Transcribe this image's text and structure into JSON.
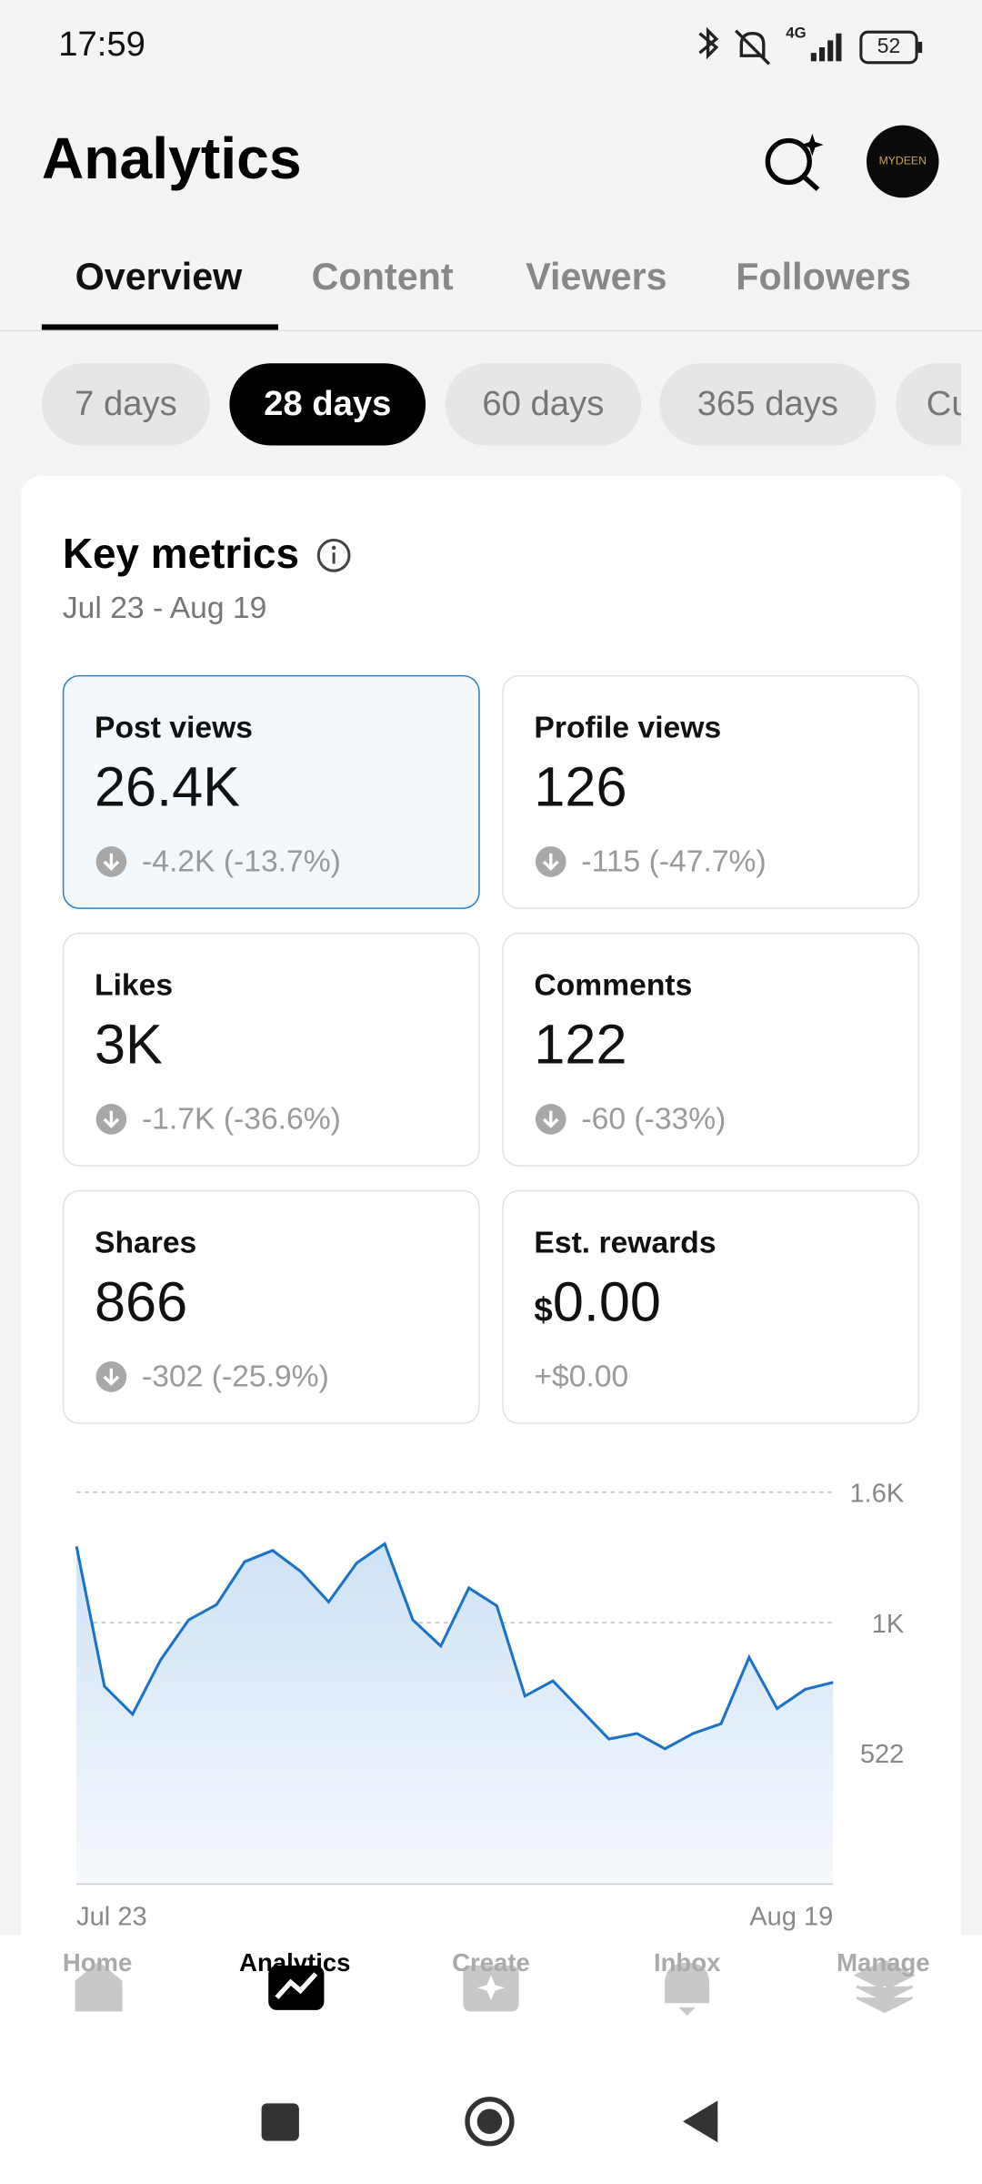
{
  "status_bar": {
    "time": "17:59",
    "network": "4G",
    "battery": "52"
  },
  "header": {
    "title": "Analytics",
    "avatar_text": "MYDEEN"
  },
  "tabs": {
    "items": [
      "Overview",
      "Content",
      "Viewers",
      "Followers"
    ],
    "active": 0
  },
  "ranges": {
    "items": [
      "7 days",
      "28 days",
      "60 days",
      "365 days",
      "Custom"
    ],
    "active": 1
  },
  "card": {
    "title": "Key metrics",
    "date_range": "Jul 23 - Aug 19"
  },
  "metrics": [
    {
      "label": "Post views",
      "value": "26.4K",
      "change": "-4.2K (-13.7%)"
    },
    {
      "label": "Profile views",
      "value": "126",
      "change": "-115 (-47.7%)"
    },
    {
      "label": "Likes",
      "value": "3K",
      "change": "-1.7K (-36.6%)"
    },
    {
      "label": "Comments",
      "value": "122",
      "change": "-60 (-33%)"
    },
    {
      "label": "Shares",
      "value": "866",
      "change": "-302 (-25.9%)"
    },
    {
      "label": "Est. rewards",
      "currency": "$",
      "value": "0.00",
      "change": "+$0.00"
    }
  ],
  "chart_data": {
    "type": "line",
    "color": "#1a73c8",
    "categories": [
      "Jul 23",
      null,
      null,
      null,
      null,
      null,
      null,
      null,
      null,
      null,
      null,
      null,
      null,
      null,
      null,
      null,
      null,
      null,
      null,
      null,
      null,
      null,
      null,
      null,
      null,
      null,
      null,
      "Aug 19"
    ],
    "values": [
      1349,
      789,
      677,
      894,
      1055,
      1116,
      1288,
      1333,
      1249,
      1127,
      1283,
      1360,
      1055,
      950,
      1183,
      1111,
      750,
      811,
      694,
      578,
      600,
      539,
      600,
      639,
      905,
      700,
      777,
      805
    ],
    "ylim": [
      0,
      1566
    ],
    "yticks": [
      522,
      {
        "value": 1044,
        "label": "1K"
      },
      {
        "value": 1566,
        "label": "1.6K"
      }
    ],
    "grid": true
  },
  "nav": {
    "items": [
      "Home",
      "Analytics",
      "Create",
      "Inbox",
      "Manage"
    ],
    "active": 1
  }
}
